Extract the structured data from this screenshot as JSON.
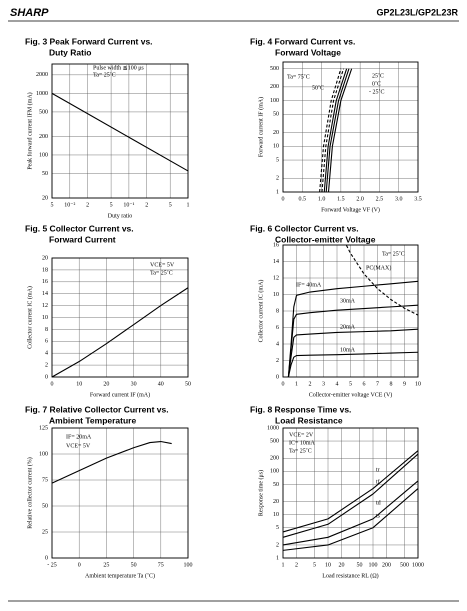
{
  "header": {
    "brand": "SHARP",
    "part": "GP2L23L/GP2L23R"
  },
  "chart_data": [
    {
      "type": "line",
      "title": [
        "Fig. 3 Peak Forward Current vs.",
        "Duty Ratio"
      ],
      "xlabel": "Duty ratio",
      "ylabel": "Peak forward current IFM (mA)",
      "xlog": true,
      "ylog": true,
      "grid": true,
      "xlim": [
        0.005,
        1
      ],
      "xticks": [
        {
          "value": 0.005,
          "label": "5"
        },
        {
          "value": 0.01,
          "label": "10⁻²"
        },
        {
          "value": 0.02,
          "label": "2"
        },
        {
          "value": 0.05,
          "label": "5"
        },
        {
          "value": 0.1,
          "label": "10⁻¹"
        },
        {
          "value": 0.2,
          "label": "2"
        },
        {
          "value": 0.5,
          "label": "5"
        },
        1
      ],
      "ylim": [
        20,
        3000
      ],
      "yticks": [
        20,
        50,
        100,
        200,
        500,
        1000,
        2000
      ],
      "annotations": [
        "Pulse width ≦100 μs",
        "Ta= 25˚C"
      ],
      "series": [
        {
          "color": "#000",
          "x": [
            0.005,
            0.01,
            0.1,
            1
          ],
          "values": [
            1000,
            685,
            194,
            55
          ]
        }
      ]
    },
    {
      "type": "line",
      "title": [
        "Fig. 4 Forward Current vs.",
        "Forward Voltage"
      ],
      "xlabel": "Forward Voltage VF (V)",
      "ylabel": "Forward current IF (mA)",
      "ylog": true,
      "grid": true,
      "xlim": [
        0,
        3.5
      ],
      "xticks": [
        0,
        0.5,
        {
          "value": 1,
          "label": "1.0"
        },
        1.5,
        {
          "value": 2,
          "label": "2.0"
        },
        2.5,
        {
          "value": 3,
          "label": "3.0"
        },
        3.5
      ],
      "ylim": [
        1,
        700
      ],
      "yticks": [
        1,
        2,
        5,
        10,
        20,
        50,
        100,
        200,
        500
      ],
      "series": [
        {
          "name": "Ta= 75˚C",
          "color": "#000",
          "dashed": true,
          "x": [
            0.95,
            1.05,
            1.25,
            1.5
          ],
          "values": [
            1,
            10,
            100,
            500
          ]
        },
        {
          "name": "50˚C",
          "color": "#000",
          "dashed": true,
          "x": [
            1.01,
            1.11,
            1.31,
            1.57
          ],
          "values": [
            1,
            10,
            100,
            500
          ]
        },
        {
          "name": "25˚C",
          "color": "#000",
          "dashed": false,
          "x": [
            1.07,
            1.17,
            1.38,
            1.65
          ],
          "values": [
            1,
            10,
            100,
            500
          ]
        },
        {
          "name": "0˚C",
          "color": "#000",
          "dashed": false,
          "x": [
            1.12,
            1.22,
            1.44,
            1.71
          ],
          "values": [
            1,
            10,
            100,
            500
          ]
        },
        {
          "name": "- 25˚C",
          "color": "#000",
          "dashed": false,
          "x": [
            1.18,
            1.28,
            1.5,
            1.78
          ],
          "values": [
            1,
            10,
            100,
            500
          ]
        }
      ]
    },
    {
      "type": "line",
      "title": [
        "Fig. 5 Collector Current vs.",
        "Forward Current"
      ],
      "xlabel": "Forward current IF (mA)",
      "ylabel": "Collector current IC (mA)",
      "grid": true,
      "xlim": [
        0,
        50
      ],
      "xticks": [
        0,
        10,
        20,
        30,
        40,
        50
      ],
      "ylim": [
        0,
        20
      ],
      "yticks": [
        0,
        2,
        4,
        6,
        8,
        10,
        12,
        14,
        16,
        18,
        20
      ],
      "annotations": [
        "VCE= 5V",
        "Ta= 25˚C"
      ],
      "series": [
        {
          "color": "#000",
          "x": [
            0,
            10,
            20,
            30,
            40,
            50
          ],
          "values": [
            0,
            2.6,
            5.6,
            8.8,
            12,
            15
          ]
        }
      ]
    },
    {
      "type": "line",
      "title": [
        "Fig. 6 Collector Current vs.",
        "Collector-emitter Voltage"
      ],
      "xlabel": "Collector-emitter voltage VCE (V)",
      "ylabel": "Collector current IC (mA)",
      "grid": true,
      "xlim": [
        0,
        10
      ],
      "xticks": [
        0,
        1,
        2,
        3,
        4,
        5,
        6,
        7,
        8,
        9,
        10
      ],
      "ylim": [
        0,
        16
      ],
      "yticks": [
        0,
        2,
        4,
        6,
        8,
        10,
        12,
        14,
        16
      ],
      "annotations": [
        "Ta= 25˚C"
      ],
      "series": [
        {
          "name": "IF= 40mA",
          "color": "#000",
          "dashed": false,
          "x": [
            0.4,
            0.6,
            0.8,
            1,
            2,
            4,
            6,
            8,
            10
          ],
          "values": [
            0,
            4,
            8.5,
            9.9,
            10.3,
            10.7,
            11,
            11.3,
            11.6
          ]
        },
        {
          "name": "30mA",
          "color": "#000",
          "dashed": false,
          "x": [
            0.4,
            0.6,
            0.8,
            1,
            2,
            4,
            6,
            8,
            10
          ],
          "values": [
            0,
            3.5,
            7,
            7.6,
            7.8,
            8.1,
            8.3,
            8.5,
            8.7
          ]
        },
        {
          "name": "20mA",
          "color": "#000",
          "dashed": false,
          "x": [
            0.4,
            0.6,
            0.8,
            1,
            2,
            4,
            6,
            8,
            10
          ],
          "values": [
            0,
            2.5,
            4.8,
            5.1,
            5.2,
            5.4,
            5.5,
            5.6,
            5.8
          ]
        },
        {
          "name": "10mA",
          "color": "#000",
          "dashed": false,
          "x": [
            0.4,
            0.6,
            0.8,
            1,
            2,
            4,
            6,
            8,
            10
          ],
          "values": [
            0,
            1.5,
            2.4,
            2.6,
            2.65,
            2.7,
            2.8,
            2.9,
            3
          ]
        },
        {
          "name": "PC(MAX)",
          "color": "#000",
          "dashed": true,
          "x": [
            4.7,
            5,
            6,
            7,
            8,
            9,
            10
          ],
          "values": [
            15.96,
            15,
            12.5,
            10.71,
            9.38,
            8.33,
            7.5
          ]
        }
      ]
    },
    {
      "type": "line",
      "title": [
        "Fig. 7 Relative Collector Current vs.",
        "Ambient Temperature"
      ],
      "xlabel": "Ambient temperature Ta (˚C)",
      "ylabel": "Relative collector current (%)",
      "grid": true,
      "xlim": [
        -25,
        100
      ],
      "xticks": [
        {
          "value": -25,
          "label": "- 25"
        },
        0,
        25,
        50,
        75,
        100
      ],
      "ylim": [
        0,
        125
      ],
      "yticks": [
        0,
        25,
        50,
        75,
        100,
        125
      ],
      "annotations": [
        "IF= 20mA",
        "VCE= 5V"
      ],
      "series": [
        {
          "color": "#000",
          "x": [
            -25,
            0,
            25,
            50,
            65,
            75,
            85
          ],
          "values": [
            72,
            84,
            96,
            106,
            111,
            112,
            110
          ]
        }
      ]
    },
    {
      "type": "line",
      "title": [
        "Fig. 8 Response Time vs.",
        "Load Resistance"
      ],
      "xlabel": "Load resistance RL (Ω)",
      "ylabel": "Response time (μs)",
      "xlog": true,
      "ylog": true,
      "grid": true,
      "xlim": [
        1,
        1000
      ],
      "xticks": [
        1,
        2,
        5,
        10,
        20,
        50,
        100,
        200,
        500,
        1000
      ],
      "ylim": [
        1,
        1000
      ],
      "yticks": [
        1,
        2,
        5,
        10,
        20,
        50,
        100,
        200,
        500,
        1000
      ],
      "annotations": [
        "VCE= 2V",
        "IC= 10mA",
        "Ta= 25˚C"
      ],
      "series": [
        {
          "name": "tr",
          "color": "#000",
          "dashed": false,
          "x": [
            1,
            10,
            100,
            1000
          ],
          "values": [
            4,
            8,
            40,
            300
          ]
        },
        {
          "name": "tf",
          "color": "#000",
          "dashed": false,
          "x": [
            1,
            10,
            100,
            1000
          ],
          "values": [
            3,
            6,
            30,
            250
          ]
        },
        {
          "name": "td",
          "color": "#000",
          "dashed": false,
          "x": [
            1,
            10,
            100,
            1000
          ],
          "values": [
            2,
            3,
            8,
            60
          ]
        },
        {
          "name": "ts",
          "color": "#000",
          "dashed": false,
          "x": [
            1,
            10,
            100,
            1000
          ],
          "values": [
            1.5,
            2,
            5,
            40
          ]
        }
      ]
    }
  ]
}
